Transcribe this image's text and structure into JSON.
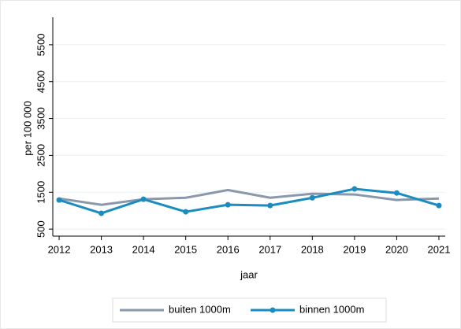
{
  "chart_data": {
    "type": "line",
    "x": [
      2012,
      2013,
      2014,
      2015,
      2016,
      2017,
      2018,
      2019,
      2020,
      2021
    ],
    "series": [
      {
        "name": "buiten 1000m",
        "color": "#8a98ab",
        "marker": false,
        "values": [
          1330,
          1160,
          1310,
          1350,
          1560,
          1350,
          1460,
          1440,
          1290,
          1330
        ]
      },
      {
        "name": "binnen 1000m",
        "color": "#1a8cbf",
        "marker": true,
        "values": [
          1290,
          930,
          1310,
          970,
          1160,
          1140,
          1350,
          1590,
          1480,
          1140
        ]
      }
    ],
    "xlabel": "jaar",
    "ylabel": "per 100 000",
    "xlim": [
      2011.85,
      2021.15
    ],
    "xticks": [
      2012,
      2013,
      2014,
      2015,
      2016,
      2017,
      2018,
      2019,
      2020,
      2021
    ],
    "ylim": [
      310,
      6245
    ],
    "yticks": [
      500,
      1500,
      2500,
      3500,
      4500,
      5500
    ],
    "grid": true,
    "legend": "bottom"
  }
}
